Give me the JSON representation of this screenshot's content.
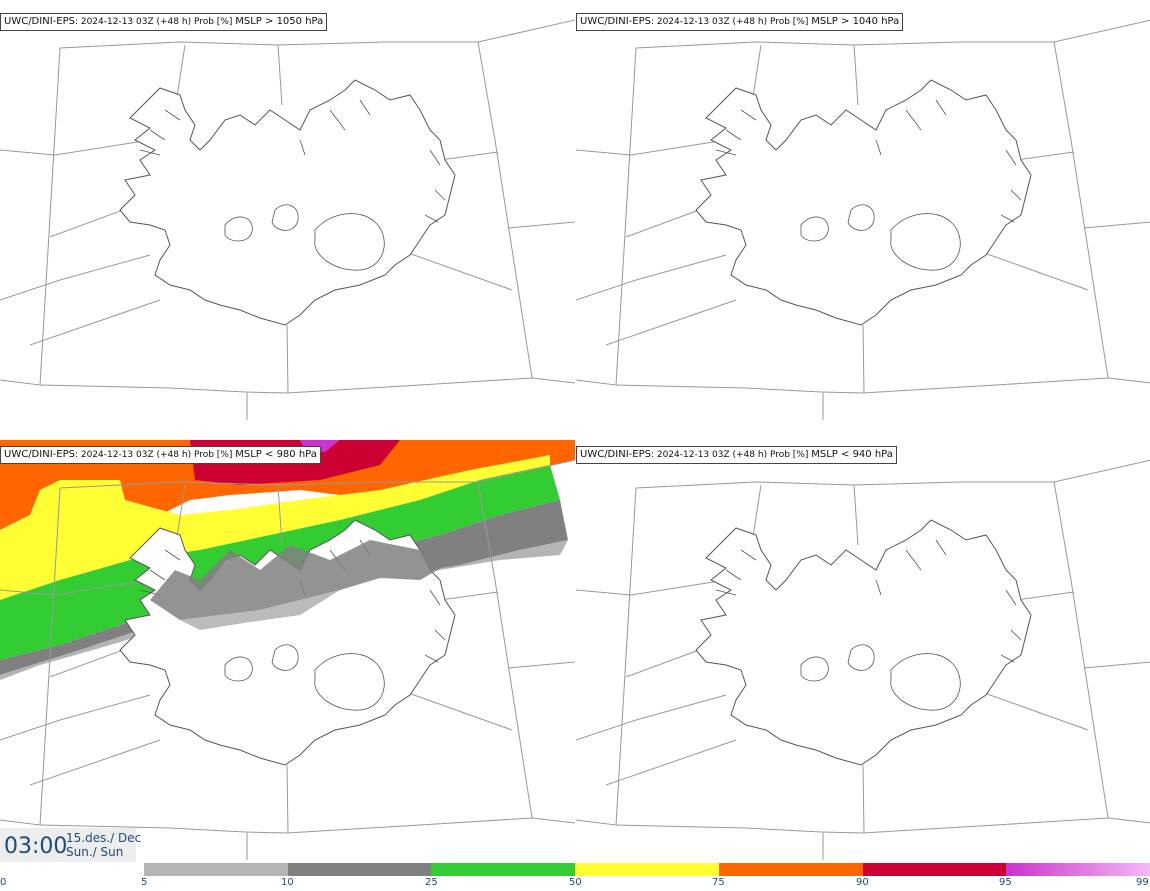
{
  "panels": [
    {
      "model": "UWC/DINI-EPS",
      "run": "2024-12-13 03Z (+48 h) Prob [%]",
      "threshold": "MSLP > 1050 hPa"
    },
    {
      "model": "UWC/DINI-EPS",
      "run": "2024-12-13 03Z (+48 h) Prob [%]",
      "threshold": "MSLP > 1040 hPa"
    },
    {
      "model": "UWC/DINI-EPS",
      "run": "2024-12-13 03Z (+48 h) Prob [%]",
      "threshold": "MSLP < 980 hPa"
    },
    {
      "model": "UWC/DINI-EPS",
      "run": "2024-12-13 03Z (+48 h) Prob [%]",
      "threshold": "MSLP < 940 hPa"
    }
  ],
  "time": {
    "clock": "03:00",
    "date_line1": "15.des./ Dec",
    "date_line2": "Sun./ Sun"
  },
  "legend": {
    "ticks": [
      "0",
      "5",
      "10",
      "25",
      "50",
      "75",
      "90",
      "95",
      "99"
    ],
    "colors": [
      "#b4b4b4",
      "#808080",
      "#33cc33",
      "#ffff33",
      "#ff6600",
      "#cc0033",
      "#cc33cc"
    ],
    "gradient_end": "#f5b8f5"
  },
  "field_colors": {
    "light_gray": "#b4b4b4",
    "gray": "#808080",
    "green": "#33cc33",
    "yellow": "#ffff33",
    "orange": "#ff6600",
    "crimson": "#cc0033",
    "magenta": "#cc33cc"
  }
}
